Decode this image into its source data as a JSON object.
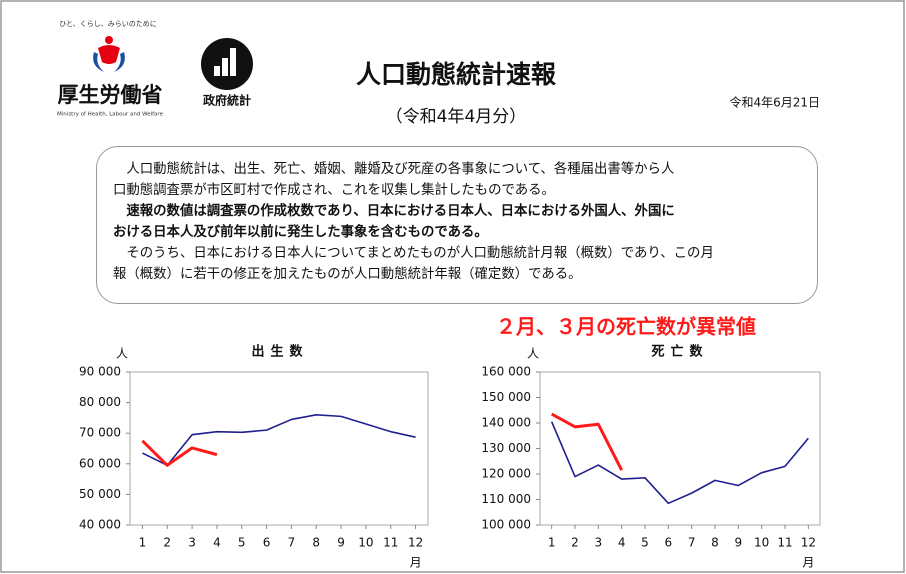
{
  "header": {
    "tagline": "ひと、くらし、みらいのために",
    "ministry": "厚生労働省",
    "ministry_en": "Ministry of Health, Labour and Welfare",
    "stats_logo": "政府統計",
    "title": "人口動態統計速報",
    "subtitle": "（令和4年4月分）",
    "date": "令和4年6月21日"
  },
  "notice": {
    "paragraphs": [
      {
        "bold": false,
        "lines": [
          "人口動態統計は、出生、死亡、婚姻、離婚及び死産の各事象について、各種届出書等から人",
          "口動態調査票が市区町村で作成され、これを収集し集計したものである。"
        ]
      },
      {
        "bold": true,
        "lines": [
          "速報の数値は調査票の作成枚数であり、日本における日本人、日本における外国人、外国に",
          "おける日本人及び前年以前に発生した事象を含むものである。"
        ]
      },
      {
        "bold": false,
        "lines": [
          "そのうち、日本における日本人についてまとめたものが人口動態統計月報（概数）であり、この月",
          "報（概数）に若干の修正を加えたものが人口動態統計年報（確定数）である。"
        ]
      }
    ]
  },
  "chart_data": [
    {
      "type": "line",
      "title": "出生数",
      "ylabel": "人",
      "xlabel": "月",
      "x": [
        1,
        2,
        3,
        4,
        5,
        6,
        7,
        8,
        9,
        10,
        11,
        12
      ],
      "xlim": [
        0.5,
        12.5
      ],
      "xticks": [
        1,
        2,
        3,
        4,
        5,
        6,
        7,
        8,
        9,
        10,
        11,
        12
      ],
      "ylim": [
        40000,
        90000
      ],
      "yticks": [
        {
          "value": 40000,
          "label": "40 000"
        },
        {
          "value": 50000,
          "label": "50 000"
        },
        {
          "value": 60000,
          "label": "60 000"
        },
        {
          "value": 70000,
          "label": "70 000"
        },
        {
          "value": 80000,
          "label": "80 000"
        },
        {
          "value": 90000,
          "label": "90 000"
        }
      ],
      "series": [
        {
          "color": "#1f1f8f",
          "values": [
            63500,
            59500,
            69500,
            70500,
            70300,
            71000,
            74500,
            76000,
            75500,
            73000,
            70500,
            68700
          ]
        },
        {
          "color": "#ff1a1a",
          "values": [
            67500,
            59500,
            65200,
            63000,
            null,
            null,
            null,
            null,
            null,
            null,
            null,
            null
          ]
        }
      ]
    },
    {
      "type": "line",
      "title": "死亡数",
      "ylabel": "人",
      "xlabel": "月",
      "annotation": "２月、３月の死亡数が異常値",
      "x": [
        1,
        2,
        3,
        4,
        5,
        6,
        7,
        8,
        9,
        10,
        11,
        12
      ],
      "xlim": [
        0.5,
        12.5
      ],
      "xticks": [
        1,
        2,
        3,
        4,
        5,
        6,
        7,
        8,
        9,
        10,
        11,
        12
      ],
      "ylim": [
        100000,
        160000
      ],
      "yticks": [
        {
          "value": 100000,
          "label": "100 000"
        },
        {
          "value": 110000,
          "label": "110 000"
        },
        {
          "value": 120000,
          "label": "120 000"
        },
        {
          "value": 130000,
          "label": "130 000"
        },
        {
          "value": 140000,
          "label": "140 000"
        },
        {
          "value": 150000,
          "label": "150 000"
        },
        {
          "value": 160000,
          "label": "160 000"
        }
      ],
      "series": [
        {
          "color": "#1f1f8f",
          "values": [
            140500,
            119000,
            123500,
            118000,
            118500,
            108500,
            112500,
            117500,
            115500,
            120500,
            123000,
            134000
          ]
        },
        {
          "color": "#ff1a1a",
          "values": [
            143500,
            138500,
            139500,
            121500,
            null,
            null,
            null,
            null,
            null,
            null,
            null,
            null
          ]
        }
      ]
    }
  ]
}
